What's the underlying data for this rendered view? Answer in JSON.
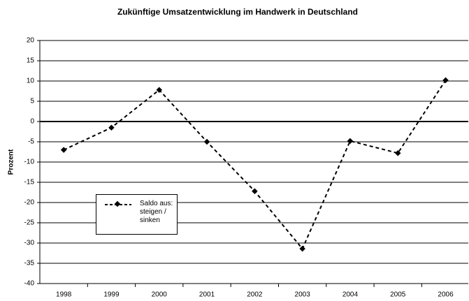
{
  "chart_data": {
    "type": "line",
    "title": "Zukünftige Umsatzentwicklung im Handwerk in Deutschland",
    "y_label": "Prozent",
    "categories": [
      "1998",
      "1999",
      "2000",
      "2001",
      "2002",
      "2003",
      "2004",
      "2005",
      "2006"
    ],
    "series": [
      {
        "name": "Saldo aus: steigen / sinken",
        "color": "#000000",
        "values": [
          -7,
          -1.5,
          7.8,
          -5,
          -17.2,
          -31.4,
          -4.8,
          -7.8,
          10.2
        ]
      }
    ],
    "ylim": [
      -40,
      20
    ],
    "yticks": [
      -40,
      -35,
      -30,
      -25,
      -20,
      -15,
      -10,
      -5,
      0,
      5,
      10,
      15,
      20
    ],
    "grid": true
  }
}
